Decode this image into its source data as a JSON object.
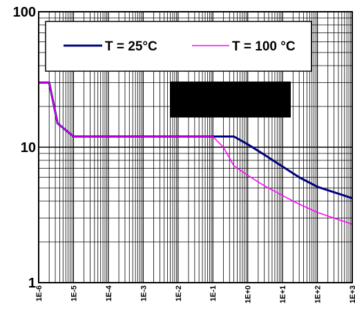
{
  "chart_data": {
    "type": "line",
    "title": "",
    "xlabel": "",
    "ylabel": "",
    "x_scale": "log",
    "y_scale": "log",
    "xlim": [
      1e-06,
      1000
    ],
    "ylim": [
      1,
      100
    ],
    "grid": true,
    "legend_position": "top",
    "x_tick_values": [
      1e-06,
      1e-05,
      0.0001,
      0.001,
      0.01,
      0.1,
      1,
      10,
      100,
      1000
    ],
    "x_tick_labels": [
      "1E-6",
      "1E-5",
      "1E-4",
      "1E-3",
      "1E-2",
      "1E-1",
      "1E+0",
      "1E+1",
      "1E+2",
      "1E+3"
    ],
    "y_tick_values": [
      1,
      10,
      100
    ],
    "y_tick_labels": [
      "1",
      "10",
      "100"
    ],
    "series": [
      {
        "name": "T = 25°C",
        "color": "#00007f",
        "x": [
          1e-06,
          2e-06,
          3.5e-06,
          1e-05,
          0.1,
          0.4,
          1,
          3,
          10,
          30,
          100,
          1000
        ],
        "y": [
          30,
          30,
          15,
          12,
          12,
          12,
          10.5,
          8.8,
          7.2,
          6,
          5.1,
          4.2
        ]
      },
      {
        "name": "T = 100 °C",
        "color": "#ff00ff",
        "x": [
          1e-06,
          2e-06,
          3.5e-06,
          1e-05,
          0.1,
          0.2,
          0.4,
          1,
          3,
          10,
          30,
          100,
          1000
        ],
        "y": [
          30,
          30,
          15,
          12,
          12,
          10,
          7.3,
          6.2,
          5.2,
          4.4,
          3.8,
          3.3,
          2.7
        ]
      }
    ]
  }
}
